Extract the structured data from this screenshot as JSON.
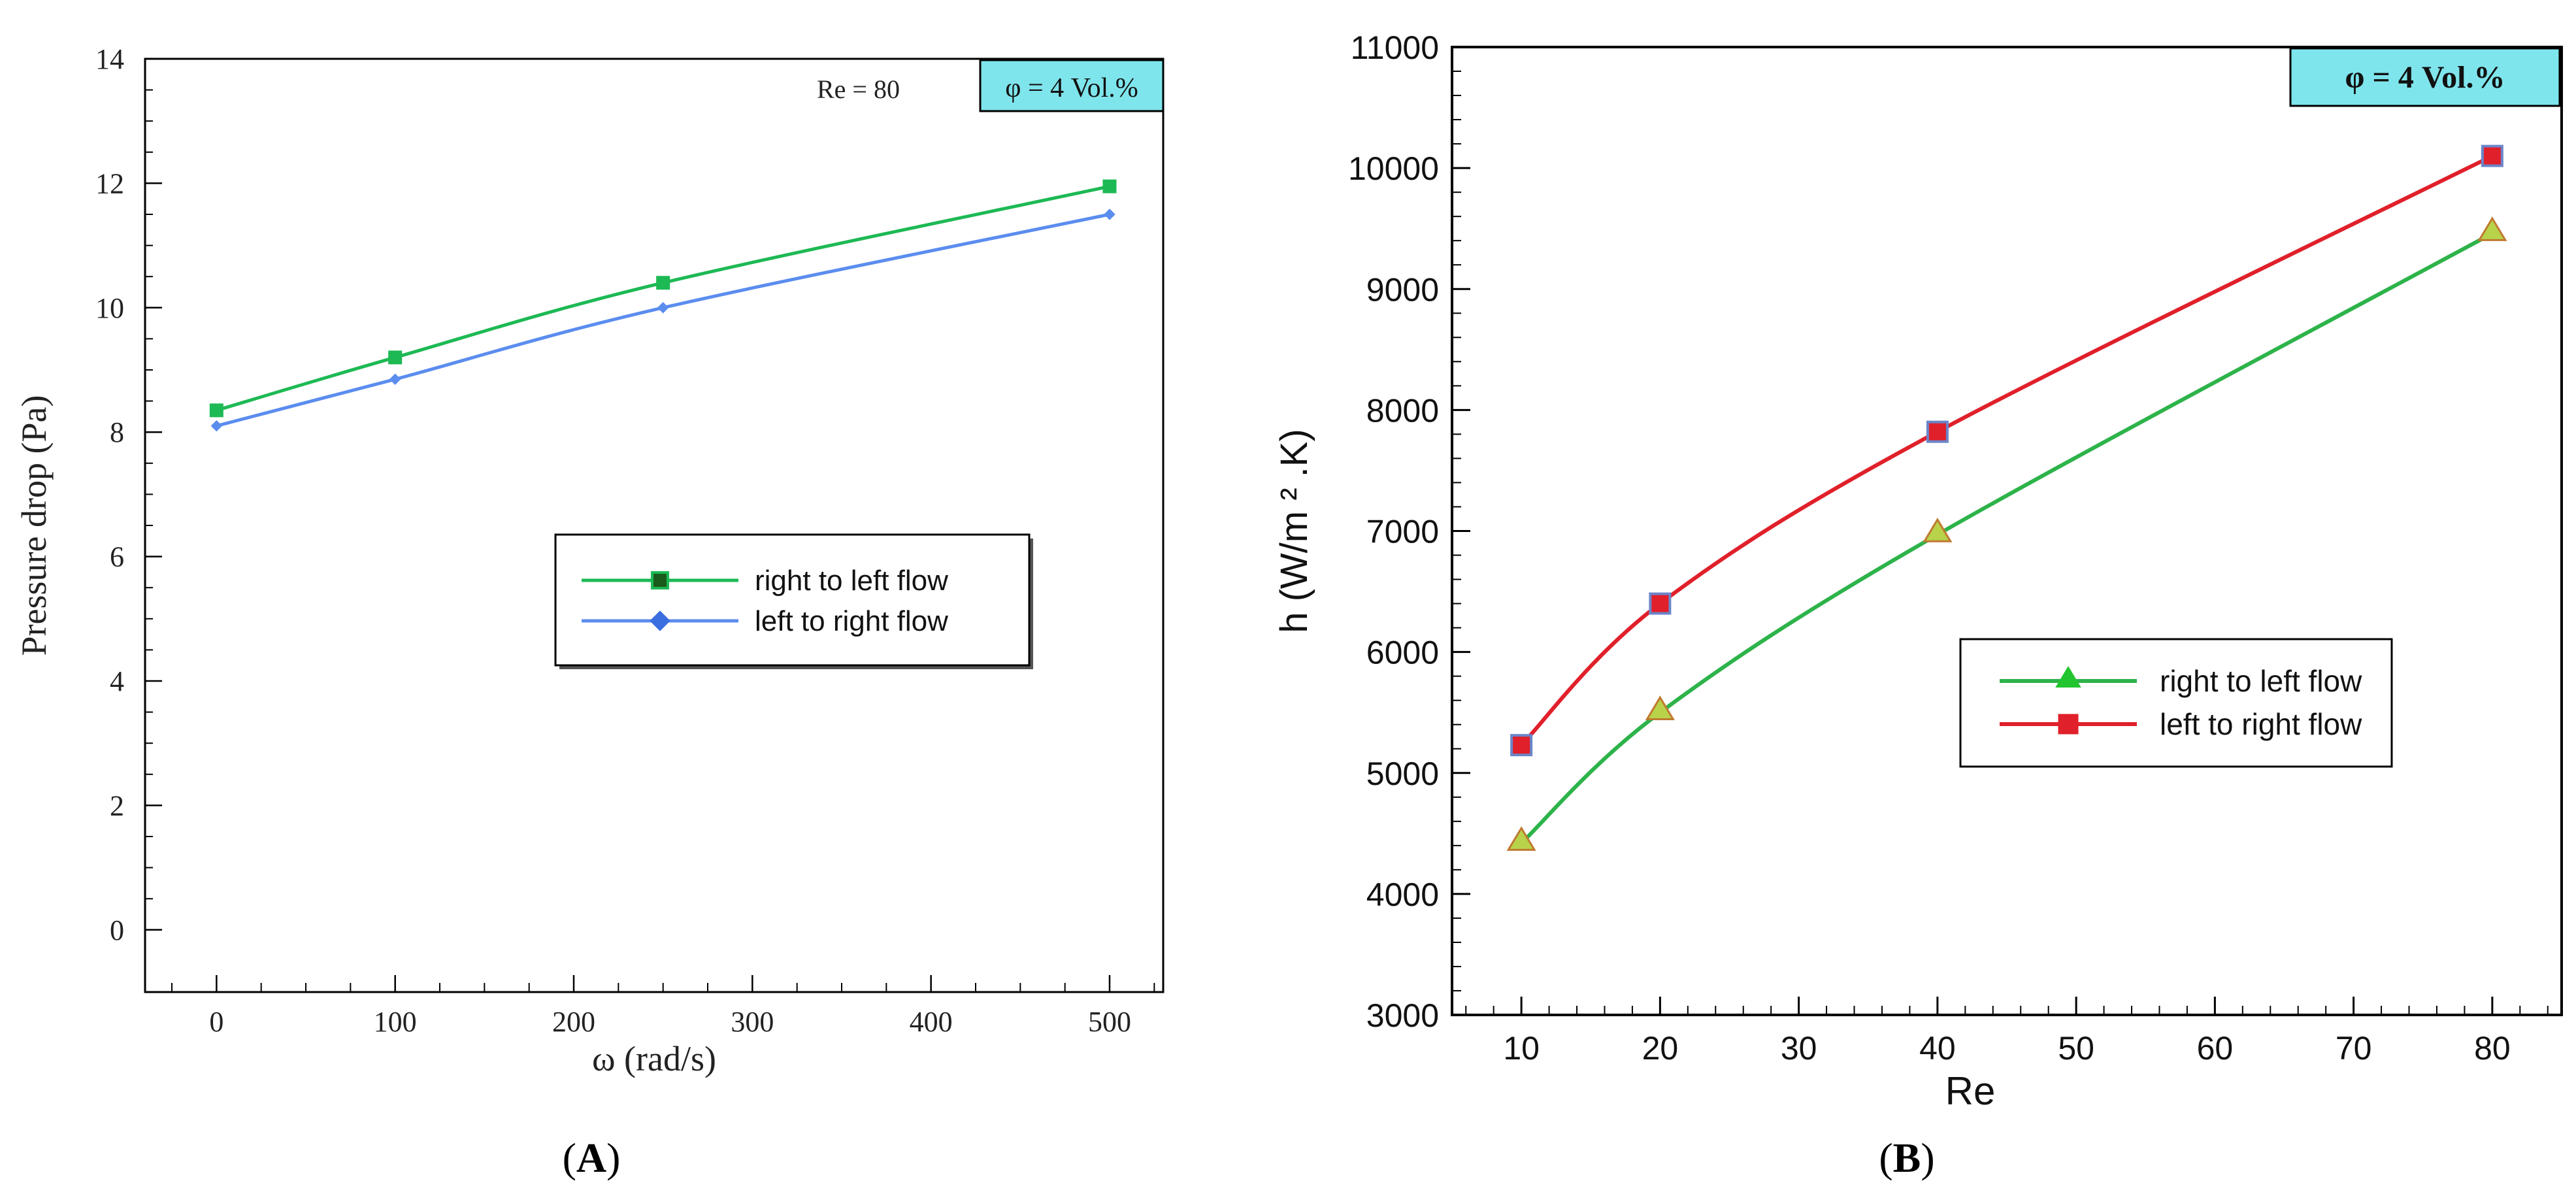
{
  "chart_data": [
    {
      "id": "A",
      "type": "line",
      "panel_label": "A",
      "xlabel": "ω (rad/s)",
      "ylabel": "Pressure drop (Pa)",
      "xlim": [
        -40,
        530
      ],
      "ylim": [
        -1,
        14
      ],
      "xticks": [
        0,
        100,
        200,
        300,
        400,
        500
      ],
      "yticks": [
        0,
        2,
        4,
        6,
        8,
        10,
        12,
        14
      ],
      "annotations": {
        "re": "Re = 80",
        "phi": "φ = 4 Vol.%"
      },
      "phi_box_color": "#7fe5ec",
      "legend_position": "center-right",
      "series": [
        {
          "name": "right to left flow",
          "color": "#1db954",
          "marker": "square",
          "x": [
            0,
            100,
            250,
            500
          ],
          "y": [
            8.35,
            9.2,
            10.4,
            11.95
          ]
        },
        {
          "name": "left to right flow",
          "color": "#5b8def",
          "marker": "diamond",
          "x": [
            0,
            100,
            250,
            500
          ],
          "y": [
            8.1,
            8.85,
            10.0,
            11.5
          ]
        }
      ]
    },
    {
      "id": "B",
      "type": "line",
      "panel_label": "B",
      "xlabel": "Re",
      "ylabel": "h (W/m ² .K)",
      "xlim": [
        5,
        85
      ],
      "ylim": [
        3000,
        11000
      ],
      "xticks": [
        10,
        20,
        30,
        40,
        50,
        60,
        70,
        80
      ],
      "yticks": [
        3000,
        4000,
        5000,
        6000,
        7000,
        8000,
        9000,
        10000,
        11000
      ],
      "annotations": {
        "phi": "φ = 4 Vol.%"
      },
      "phi_box_color": "#7fe5ec",
      "legend_position": "center-right",
      "series": [
        {
          "name": "right to left flow",
          "color": "#2db34a",
          "marker": "triangle",
          "x": [
            10,
            20,
            40,
            80
          ],
          "y": [
            4420,
            5500,
            6970,
            9460
          ]
        },
        {
          "name": "left to right flow",
          "color": "#e0202a",
          "marker": "square",
          "x": [
            10,
            20,
            40,
            80
          ],
          "y": [
            5230,
            6400,
            7820,
            10100
          ]
        }
      ]
    }
  ]
}
